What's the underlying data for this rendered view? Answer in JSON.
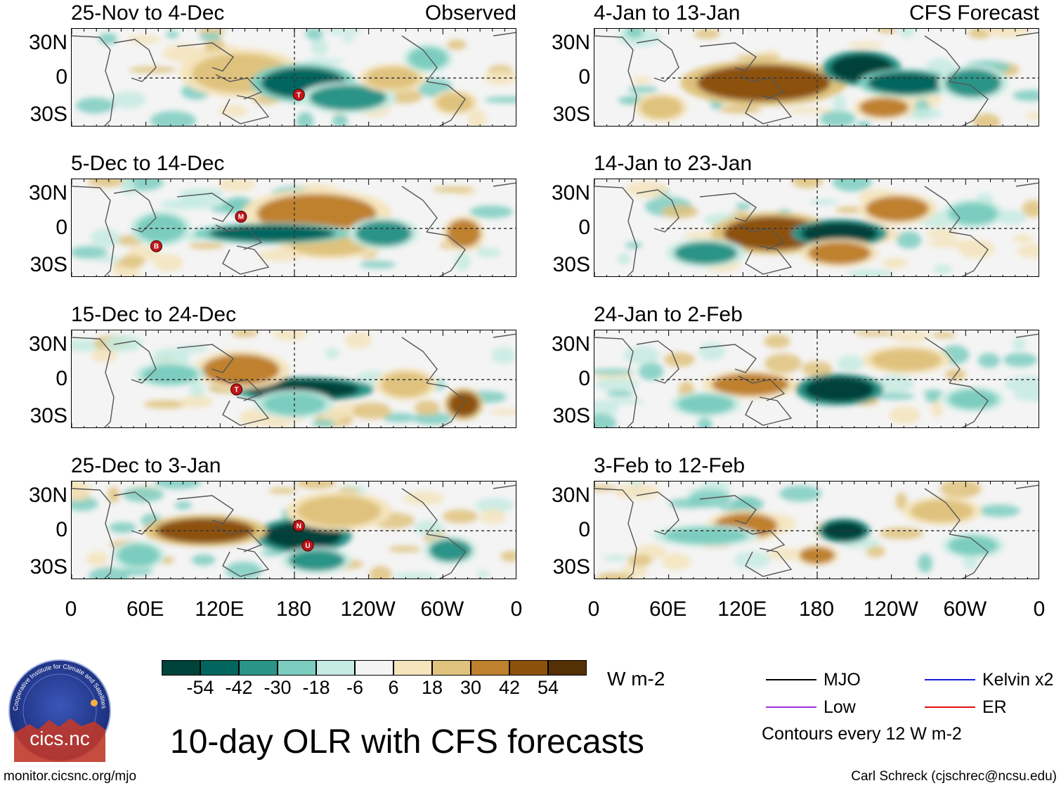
{
  "chart_data": {
    "type": "heatmap",
    "title": "10-day OLR with CFS forecasts",
    "variable": "OLR anomaly",
    "units": "W m-2",
    "colorbar": {
      "ticks": [
        "-54",
        "-42",
        "-30",
        "-18",
        "-6",
        "6",
        "18",
        "30",
        "42",
        "54"
      ],
      "colors": [
        "#00433a",
        "#00665e",
        "#2a9488",
        "#7ccdbf",
        "#c6ebe2",
        "#f4f4f4",
        "#f5e4bc",
        "#dfc27d",
        "#bf812d",
        "#8c510a",
        "#543005"
      ]
    },
    "x_ticks": [
      "0",
      "60E",
      "120E",
      "180",
      "120W",
      "60W",
      "0"
    ],
    "y_ticks": [
      "30N",
      "0",
      "30S"
    ],
    "columns": [
      {
        "header": "Observed",
        "panels": [
          {
            "title": "25-Nov to 4-Dec",
            "storms": [
              "T"
            ]
          },
          {
            "title": "5-Dec to 14-Dec",
            "storms": [
              "M",
              "B"
            ]
          },
          {
            "title": "15-Dec to 24-Dec",
            "storms": [
              "T"
            ]
          },
          {
            "title": "25-Dec to 3-Jan",
            "storms": [
              "N",
              "U"
            ]
          }
        ]
      },
      {
        "header": "CFS Forecast",
        "panels": [
          {
            "title": "4-Jan to 13-Jan",
            "storms": []
          },
          {
            "title": "14-Jan to 23-Jan",
            "storms": []
          },
          {
            "title": "24-Jan to 2-Feb",
            "storms": []
          },
          {
            "title": "3-Feb to 12-Feb",
            "storms": []
          }
        ]
      }
    ],
    "legend": [
      {
        "label": "MJO",
        "color": "#000000"
      },
      {
        "label": "Kelvin x2",
        "color": "#1a1adc"
      },
      {
        "label": "Low",
        "color": "#9b30e0"
      },
      {
        "label": "ER",
        "color": "#e01010"
      }
    ],
    "contour_note": "Contours every 12 W m-2"
  },
  "branding": {
    "logo_ring_text": "Cooperative Institute for Climate and Satellites",
    "logo_text": "cics.nc",
    "site": "monitor.cicsnc.org/mjo",
    "credit": "Carl Schreck (cjschrec@ncsu.edu)"
  }
}
